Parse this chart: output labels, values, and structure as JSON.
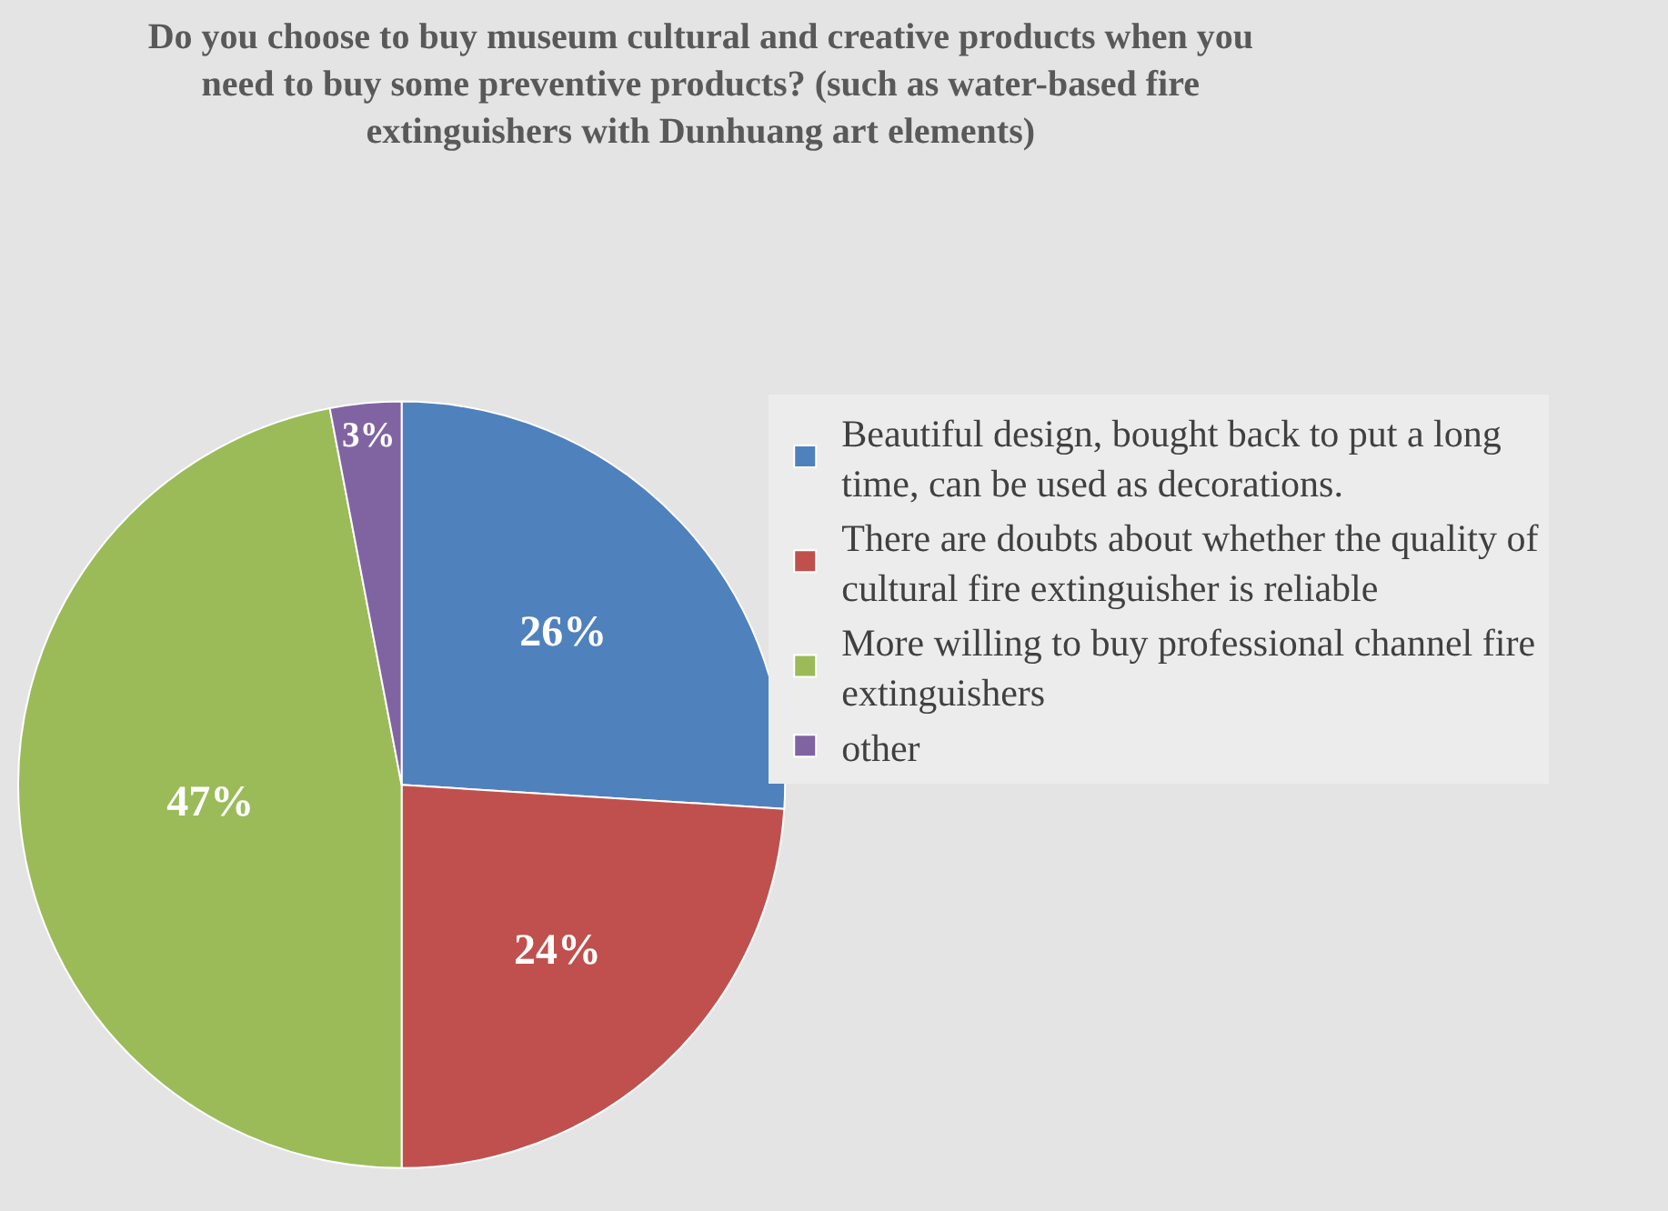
{
  "chart_data": {
    "type": "pie",
    "title": "Do you choose to buy museum cultural and creative products when you need to buy some preventive products? (such as water-based fire extinguishers with Dunhuang art elements)",
    "categories": [
      "Beautiful design, bought back to put a long time, can be used as decorations.",
      "There are doubts about whether the quality of cultural fire extinguisher is reliable",
      "More willing to buy professional channel fire extinguishers",
      "other"
    ],
    "values": [
      26,
      24,
      47,
      3
    ],
    "colors": [
      "#4f81bd",
      "#c0504d",
      "#9bbb59",
      "#8064a2"
    ],
    "value_labels": [
      "26%",
      "24%",
      "47%",
      "3%"
    ],
    "legend": "right"
  }
}
